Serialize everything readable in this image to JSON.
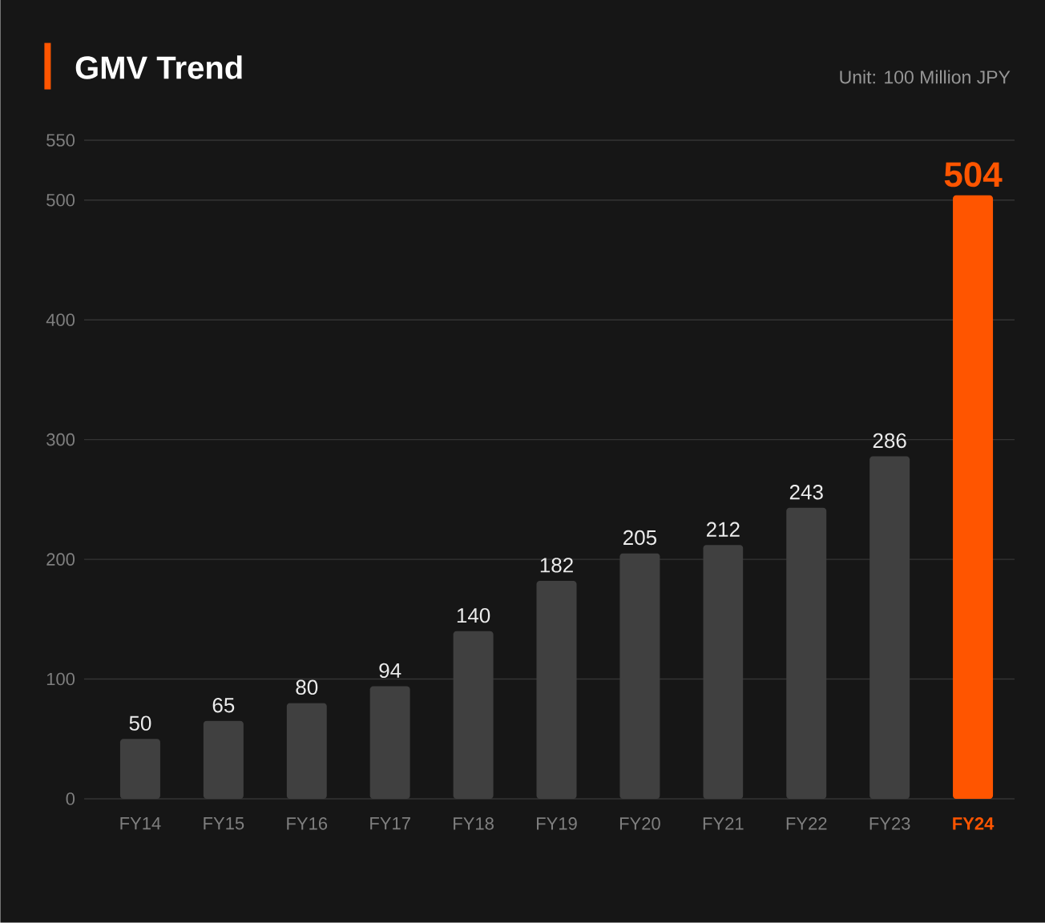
{
  "chart_data": {
    "type": "bar",
    "title": "GMV Trend",
    "subtitle": "Unit: 100 Million JPY",
    "categories": [
      "FY14",
      "FY15",
      "FY16",
      "FY17",
      "FY18",
      "FY19",
      "FY20",
      "FY21",
      "FY22",
      "FY23",
      "FY24"
    ],
    "values": [
      50,
      65,
      80,
      94,
      140,
      182,
      205,
      212,
      243,
      286,
      504
    ],
    "colors": [
      "#404040",
      "#404040",
      "#404040",
      "#404040",
      "#404040",
      "#404040",
      "#404040",
      "#404040",
      "#404040",
      "#404040",
      "#ff5500"
    ],
    "ylim": [
      0,
      550
    ],
    "yticks": [
      0,
      100,
      200,
      300,
      400,
      500,
      550
    ],
    "grid": "y",
    "data_labels": true
  }
}
